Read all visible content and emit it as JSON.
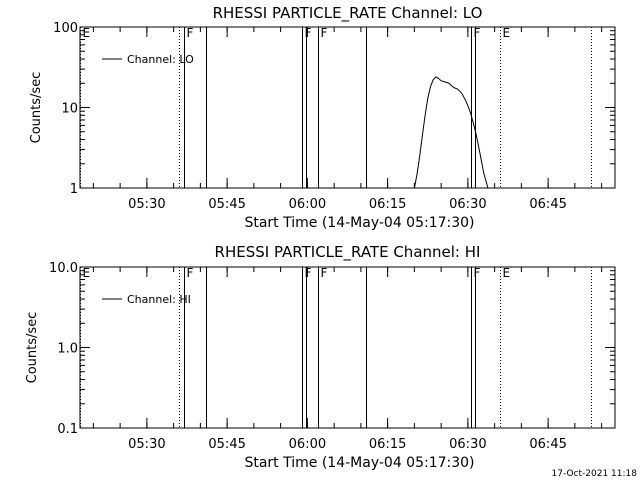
{
  "chart_data": [
    {
      "type": "line",
      "title": "RHESSI PARTICLE_RATE Channel: LO",
      "xlabel": "Start Time (14-May-04 05:17:30)",
      "ylabel": "Counts/sec",
      "yscale": "log",
      "ylim": [
        1,
        100
      ],
      "yticks": [
        1,
        10,
        100
      ],
      "ytick_labels": [
        "1",
        "10",
        "100"
      ],
      "xlim": [
        "05:17:30",
        "06:57:30"
      ],
      "xticks": [
        "05:30",
        "05:45",
        "06:00",
        "06:15",
        "06:30",
        "06:45"
      ],
      "legend": {
        "position": "top-left",
        "entries": [
          "Channel: LO"
        ]
      },
      "series": [
        {
          "name": "Channel: LO",
          "x": [
            "06:20:00",
            "06:20:30",
            "06:21:00",
            "06:21:30",
            "06:22:00",
            "06:22:30",
            "06:23:00",
            "06:23:30",
            "06:24:00",
            "06:24:30",
            "06:25:00",
            "06:25:30",
            "06:26:00",
            "06:26:30",
            "06:27:00",
            "06:27:30",
            "06:28:00",
            "06:28:30",
            "06:29:00",
            "06:29:30",
            "06:30:00",
            "06:30:30",
            "06:31:00",
            "06:31:30",
            "06:32:00",
            "06:32:30",
            "06:33:00",
            "06:33:30",
            "06:33:45"
          ],
          "values": [
            1.0,
            1.5,
            2.5,
            4.5,
            8,
            13,
            18,
            22,
            24,
            23,
            21.5,
            21,
            20.5,
            20,
            18.5,
            17.5,
            17,
            16,
            14.5,
            12.5,
            10.5,
            8.5,
            6.5,
            4.8,
            3.3,
            2.2,
            1.5,
            1.15,
            1.0
          ]
        }
      ],
      "flags": [
        {
          "label": "E",
          "time": "05:17:30",
          "style": "dotted"
        },
        {
          "label": "",
          "time": "05:36:00",
          "style": "dotted"
        },
        {
          "label": "F",
          "time": "05:37:00",
          "style": "solid"
        },
        {
          "label": "",
          "time": "05:41:00",
          "style": "solid"
        },
        {
          "label": "F",
          "time": "05:59:00",
          "style": "solid"
        },
        {
          "label": "",
          "time": "05:59:45",
          "style": "solid"
        },
        {
          "label": "F",
          "time": "06:02:00",
          "style": "solid"
        },
        {
          "label": "",
          "time": "06:11:00",
          "style": "solid"
        },
        {
          "label": "F",
          "time": "06:30:30",
          "style": "solid"
        },
        {
          "label": "",
          "time": "06:31:15",
          "style": "solid"
        },
        {
          "label": "E",
          "time": "06:36:00",
          "style": "dotted"
        },
        {
          "label": "",
          "time": "06:53:00",
          "style": "dotted"
        }
      ]
    },
    {
      "type": "line",
      "title": "RHESSI PARTICLE_RATE Channel: HI",
      "xlabel": "Start Time (14-May-04 05:17:30)",
      "ylabel": "Counts/sec",
      "yscale": "log",
      "ylim": [
        0.1,
        10
      ],
      "yticks": [
        0.1,
        1,
        10
      ],
      "ytick_labels": [
        "0.1",
        "1.0",
        "10.0"
      ],
      "xlim": [
        "05:17:30",
        "06:57:30"
      ],
      "xticks": [
        "05:30",
        "05:45",
        "06:00",
        "06:15",
        "06:30",
        "06:45"
      ],
      "legend": {
        "position": "top-left",
        "entries": [
          "Channel: HI"
        ]
      },
      "series": [
        {
          "name": "Channel: HI",
          "x": [],
          "values": []
        }
      ],
      "flags": [
        {
          "label": "E",
          "time": "05:17:30",
          "style": "dotted"
        },
        {
          "label": "",
          "time": "05:36:00",
          "style": "dotted"
        },
        {
          "label": "F",
          "time": "05:37:00",
          "style": "solid"
        },
        {
          "label": "",
          "time": "05:41:00",
          "style": "solid"
        },
        {
          "label": "F",
          "time": "05:59:00",
          "style": "solid"
        },
        {
          "label": "",
          "time": "05:59:45",
          "style": "solid"
        },
        {
          "label": "F",
          "time": "06:02:00",
          "style": "solid"
        },
        {
          "label": "",
          "time": "06:11:00",
          "style": "solid"
        },
        {
          "label": "F",
          "time": "06:30:30",
          "style": "solid"
        },
        {
          "label": "",
          "time": "06:31:15",
          "style": "solid"
        },
        {
          "label": "E",
          "time": "06:36:00",
          "style": "dotted"
        },
        {
          "label": "",
          "time": "06:53:00",
          "style": "dotted"
        }
      ]
    }
  ],
  "footer": {
    "timestamp": "17-Oct-2021 11:18"
  }
}
